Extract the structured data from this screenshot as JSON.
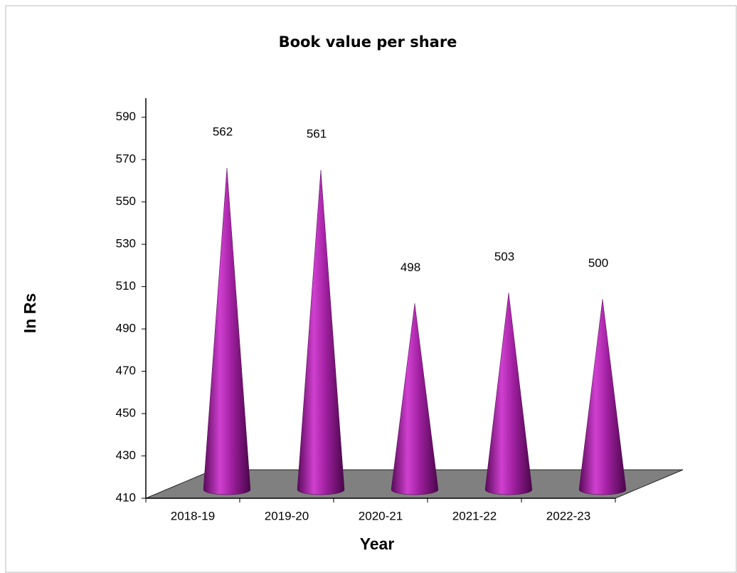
{
  "chart_data": {
    "type": "cone",
    "title": "Book value per share",
    "x_label": "Year",
    "y_label": "In Rs",
    "categories": [
      "2018-19",
      "2019-20",
      "2020-21",
      "2021-22",
      "2022-23"
    ],
    "values": [
      562,
      561,
      498,
      503,
      500
    ],
    "color": "#a020a0",
    "ylim": [
      410,
      600
    ],
    "yticks": [
      410,
      430,
      450,
      470,
      490,
      510,
      530,
      550,
      570,
      590
    ]
  }
}
